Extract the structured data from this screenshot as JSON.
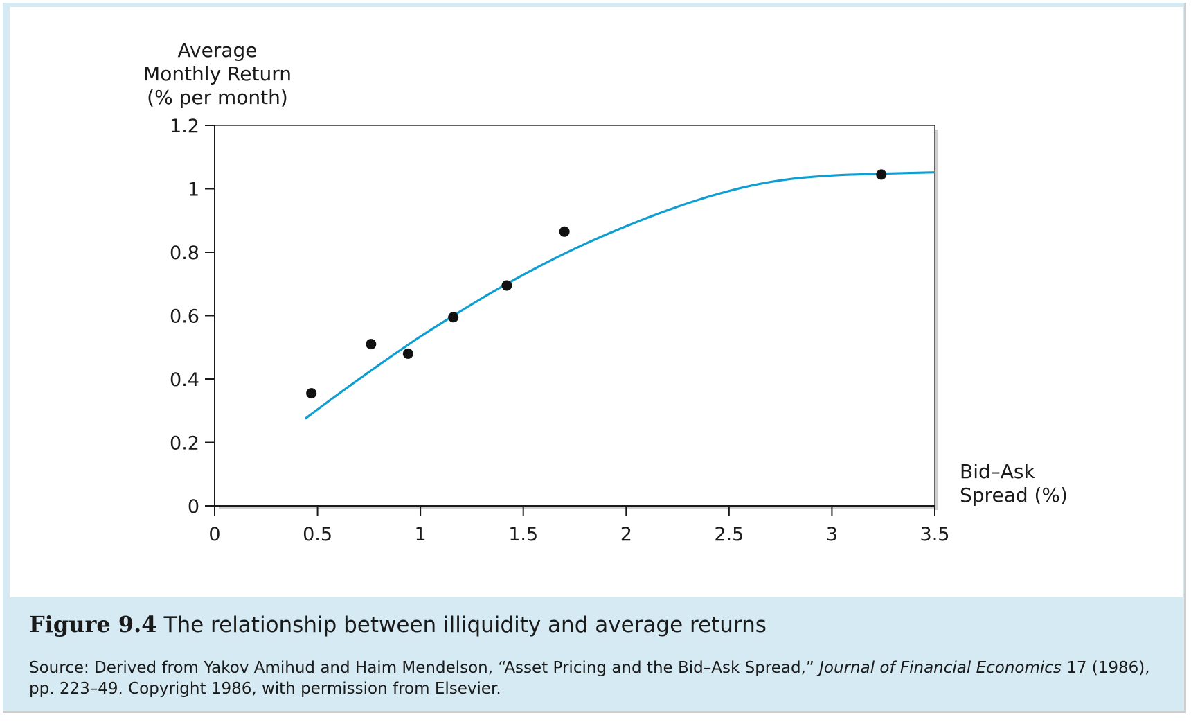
{
  "caption": {
    "figure_number": "Figure 9.4",
    "title": "The relationship between illiquidity and average returns"
  },
  "source": {
    "prefix": "Source: Derived from Yakov Amihud and Haim Mendelson, “Asset Pricing and the Bid–Ask Spread,” ",
    "journal": "Journal of Financial Economics",
    "suffix": " 17 (1986), pp. 223–49. Copyright 1986, with permission from Elsevier."
  },
  "colors": {
    "curve": "#0f9ed1",
    "points": "#111111",
    "frame_background": "#d6eaf3"
  },
  "chart_data": {
    "type": "scatter",
    "title": "",
    "ylabel": "Average\nMonthly Return\n(% per month)",
    "xlabel": "Bid–Ask\nSpread (%)",
    "xlim": [
      0,
      3.5
    ],
    "ylim": [
      0,
      1.2
    ],
    "x_ticks": [
      "0",
      "0.5",
      "1",
      "1.5",
      "2",
      "2.5",
      "3",
      "3.5"
    ],
    "y_ticks": [
      "0",
      "0.2",
      "0.4",
      "0.6",
      "0.8",
      "1",
      "1.2"
    ],
    "grid": false,
    "legend": false,
    "points": [
      {
        "x": 0.47,
        "y": 0.355
      },
      {
        "x": 0.76,
        "y": 0.51
      },
      {
        "x": 0.94,
        "y": 0.48
      },
      {
        "x": 1.16,
        "y": 0.595
      },
      {
        "x": 1.42,
        "y": 0.695
      },
      {
        "x": 1.7,
        "y": 0.865
      },
      {
        "x": 3.24,
        "y": 1.045
      }
    ],
    "fit_curve": [
      {
        "x": 0.44,
        "y": 0.275
      },
      {
        "x": 0.6,
        "y": 0.352
      },
      {
        "x": 0.8,
        "y": 0.445
      },
      {
        "x": 1.0,
        "y": 0.534
      },
      {
        "x": 1.2,
        "y": 0.616
      },
      {
        "x": 1.4,
        "y": 0.693
      },
      {
        "x": 1.6,
        "y": 0.763
      },
      {
        "x": 1.8,
        "y": 0.826
      },
      {
        "x": 2.0,
        "y": 0.882
      },
      {
        "x": 2.2,
        "y": 0.932
      },
      {
        "x": 2.4,
        "y": 0.975
      },
      {
        "x": 2.6,
        "y": 1.009
      },
      {
        "x": 2.8,
        "y": 1.031
      },
      {
        "x": 3.0,
        "y": 1.042
      },
      {
        "x": 3.2,
        "y": 1.047
      },
      {
        "x": 3.5,
        "y": 1.052
      }
    ]
  }
}
